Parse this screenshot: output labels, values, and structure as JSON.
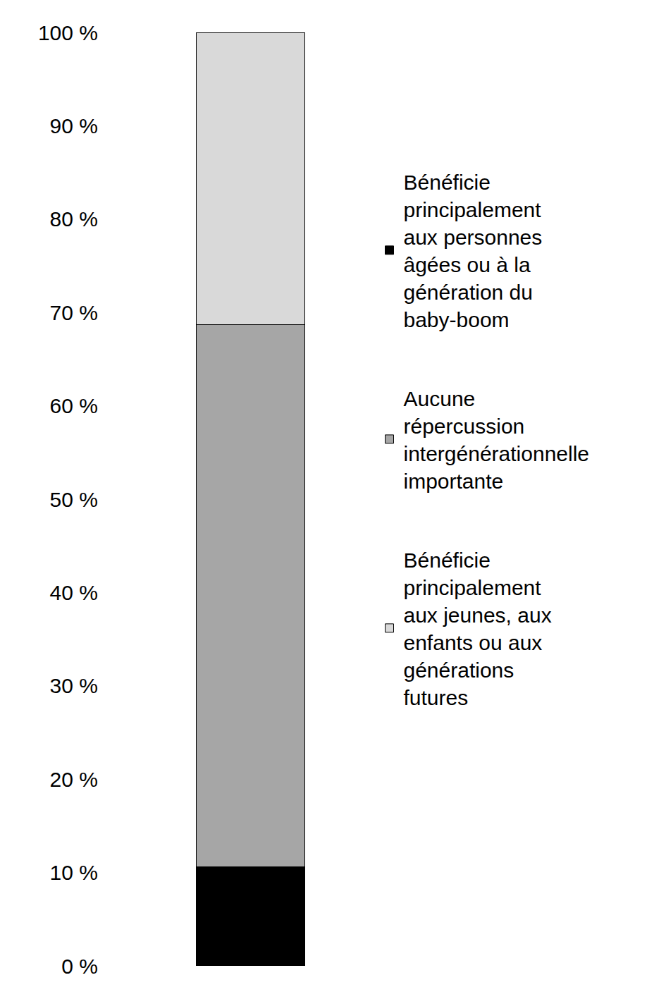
{
  "chart_data": {
    "type": "bar",
    "stacked": true,
    "categories": [
      null
    ],
    "series": [
      {
        "name": "Bénéficie principalement aux personnes âgées ou à la génération du baby-boom",
        "color": "#000000",
        "values": [
          10.6
        ]
      },
      {
        "name": "Aucune répercussion intergénérationnelle importante",
        "color": "#a6a6a6",
        "values": [
          58.1
        ]
      },
      {
        "name": "Bénéficie principalement aux jeunes, aux enfants ou aux générations futures",
        "color": "#d9d9d9",
        "values": [
          31.3
        ]
      }
    ],
    "ylim": [
      0,
      100
    ],
    "yticks": [
      {
        "value": 0,
        "label": "0 %"
      },
      {
        "value": 10,
        "label": "10 %"
      },
      {
        "value": 20,
        "label": "20 %"
      },
      {
        "value": 30,
        "label": "30 %"
      },
      {
        "value": 40,
        "label": "40 %"
      },
      {
        "value": 50,
        "label": "50 %"
      },
      {
        "value": 60,
        "label": "60 %"
      },
      {
        "value": 70,
        "label": "70 %"
      },
      {
        "value": 80,
        "label": "80 %"
      },
      {
        "value": 90,
        "label": "90 %"
      },
      {
        "value": 100,
        "label": "100 %"
      }
    ],
    "grid": false,
    "legend": "right",
    "tick_labels": "y"
  }
}
